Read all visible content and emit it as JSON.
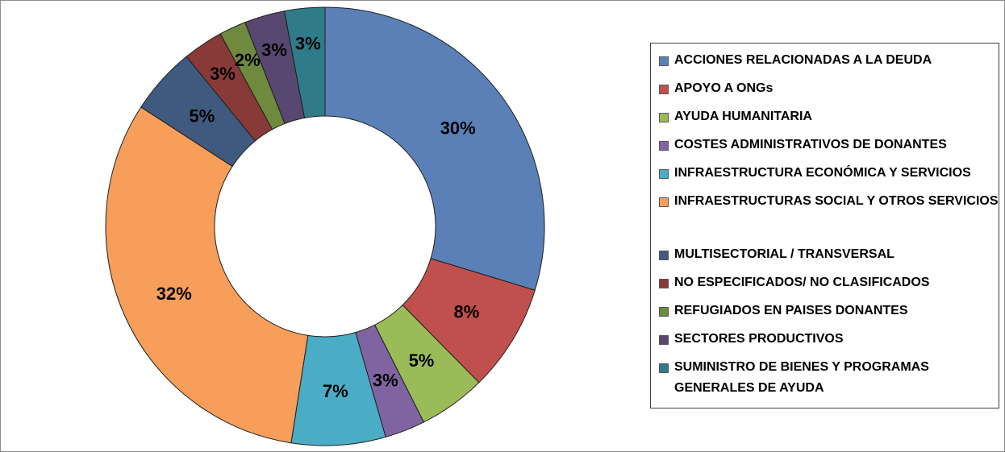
{
  "chart_data": {
    "type": "pie",
    "donut": true,
    "title": "",
    "legend_position": "right",
    "slices": [
      {
        "label": "ACCIONES RELACIONADAS A LA DEUDA",
        "value": 30,
        "value_label": "30%",
        "color": "#5b80b8"
      },
      {
        "label": "APOYO A ONGs",
        "value": 8,
        "value_label": "8%",
        "color": "#c0504d"
      },
      {
        "label": "AYUDA HUMANITARIA",
        "value": 5,
        "value_label": "5%",
        "color": "#9bbb59"
      },
      {
        "label": "COSTES ADMINISTRATIVOS DE DONANTES",
        "value": 3,
        "value_label": "3%",
        "color": "#8064a2"
      },
      {
        "label": "INFRAESTRUCTURA ECONÓMICA Y SERVICIOS",
        "value": 7,
        "value_label": "7%",
        "color": "#4bacc6"
      },
      {
        "label": "INFRAESTRUCTURAS SOCIAL Y OTROS SERVICIOS",
        "value": 32,
        "value_label": "32%",
        "color": "#f79e5a"
      },
      {
        "label": "MULTISECTORIAL / TRANSVERSAL",
        "value": 5,
        "value_label": "5%",
        "color": "#3f5a7e"
      },
      {
        "label": "NO ESPECIFICADOS/ NO CLASIFICADOS",
        "value": 3,
        "value_label": "3%",
        "color": "#883a38"
      },
      {
        "label": "REFUGIADOS EN PAISES DONANTES",
        "value": 2,
        "value_label": "2%",
        "color": "#6f8a3e"
      },
      {
        "label": "SECTORES PRODUCTIVOS",
        "value": 3,
        "value_label": "3%",
        "color": "#584770"
      },
      {
        "label": "SUMINISTRO DE BIENES Y PROGRAMAS GENERALES DE AYUDA",
        "value": 3,
        "value_label": "3%",
        "color": "#2f7b8a"
      }
    ]
  }
}
